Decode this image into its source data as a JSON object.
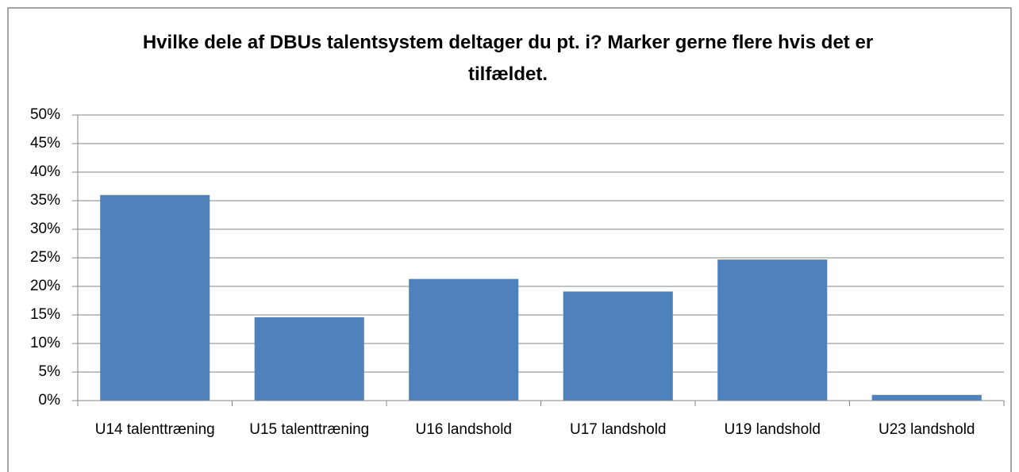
{
  "chart_data": {
    "type": "bar",
    "title": "Hvilke dele af DBUs talentsystem deltager du pt. i? Marker gerne flere hvis det er tilfældet.",
    "categories": [
      "U14 talenttræning",
      "U15 talenttræning",
      "U16 landshold",
      "U17 landshold",
      "U19 landshold",
      "U23 landshold"
    ],
    "values": [
      36,
      14.6,
      21.3,
      19.1,
      24.7,
      1
    ],
    "color": "#4f81bd",
    "ylim": [
      0,
      50
    ],
    "yticks": [
      {
        "value": 0,
        "label": "0%"
      },
      {
        "value": 5,
        "label": "5%"
      },
      {
        "value": 10,
        "label": "10%"
      },
      {
        "value": 15,
        "label": "15%"
      },
      {
        "value": 20,
        "label": "20%"
      },
      {
        "value": 25,
        "label": "25%"
      },
      {
        "value": 30,
        "label": "30%"
      },
      {
        "value": 35,
        "label": "35%"
      },
      {
        "value": 40,
        "label": "40%"
      },
      {
        "value": 45,
        "label": "45%"
      },
      {
        "value": 50,
        "label": "50%"
      }
    ],
    "grid": true
  }
}
